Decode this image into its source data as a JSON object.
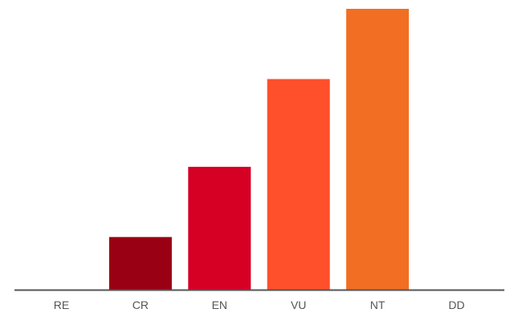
{
  "chart_data": {
    "type": "bar",
    "categories": [
      "RE",
      "CR",
      "EN",
      "VU",
      "NT",
      "DD"
    ],
    "values": [
      0,
      3,
      7,
      12,
      16,
      0
    ],
    "colors": [
      "#9a9a9a",
      "#990013",
      "#d50024",
      "#ff4f2b",
      "#f26e22",
      "#888888"
    ],
    "title": "",
    "xlabel": "",
    "ylabel": "",
    "ylim": [
      0,
      16
    ],
    "grid": false,
    "axis_color": "#555555"
  }
}
